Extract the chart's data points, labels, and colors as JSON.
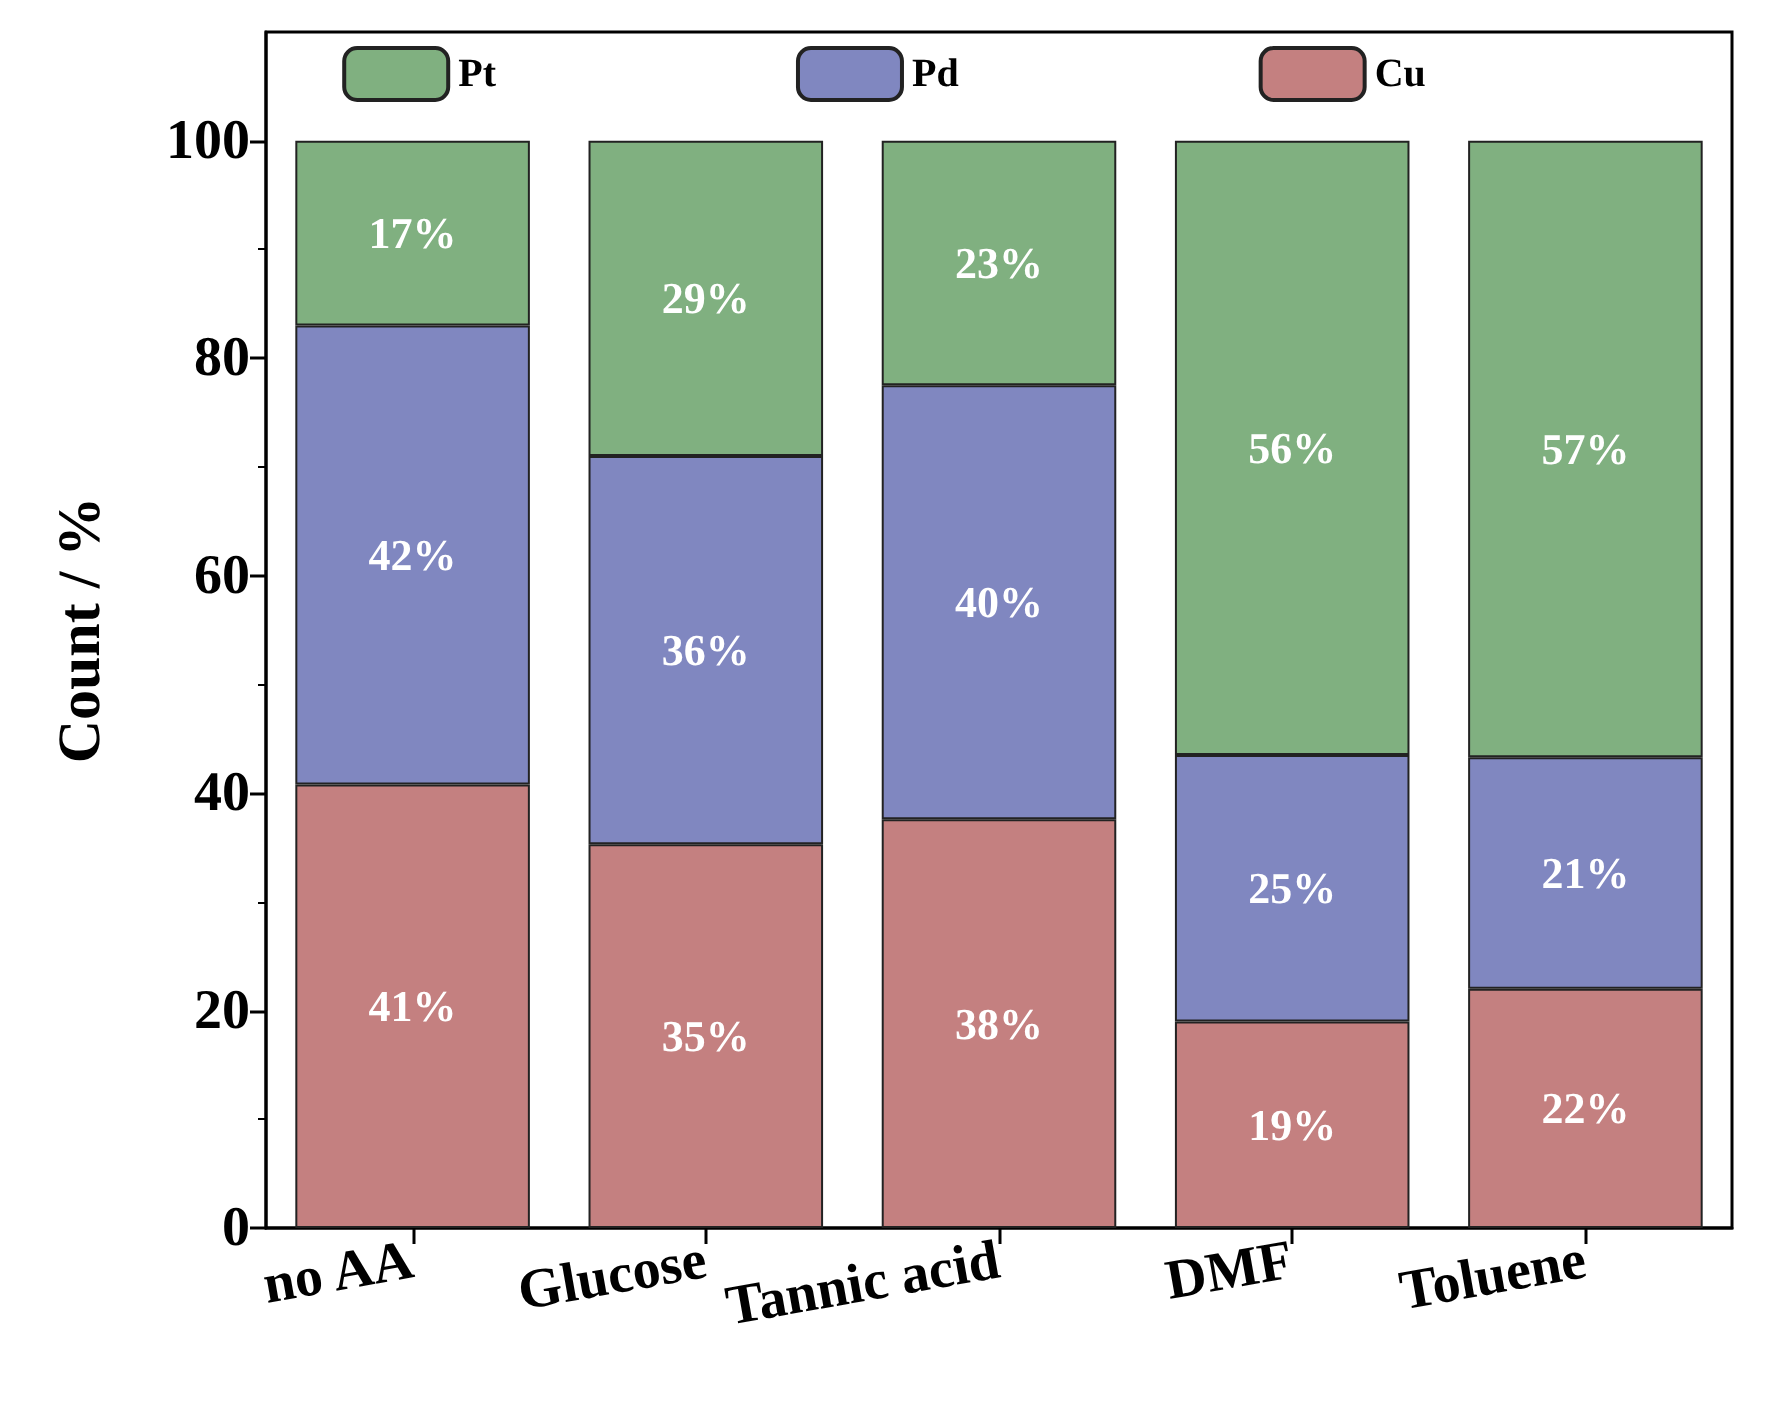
{
  "chart_data": {
    "type": "bar",
    "stacked": true,
    "ylabel": "Count / %",
    "categories": [
      "no AA",
      "Glucose",
      "Tannic acid",
      "DMF",
      "Toluene"
    ],
    "series": [
      {
        "name": "Cu",
        "color": "#c48080",
        "values": [
          40.8,
          35.3,
          37.6,
          19,
          22
        ],
        "value_labels": [
          "41%",
          "35%",
          "38%",
          "19%",
          "22%"
        ]
      },
      {
        "name": "Pd",
        "color": "#8087c0",
        "values": [
          42.2,
          35.7,
          39.9,
          24.5,
          21.3
        ],
        "value_labels": [
          "42%",
          "36%",
          "40%",
          "25%",
          "21%"
        ]
      },
      {
        "name": "Pt",
        "color": "#80b080",
        "values": [
          17,
          29,
          22.5,
          56.5,
          56.7
        ],
        "value_labels": [
          "17%",
          "29%",
          "23%",
          "56%",
          "57%"
        ]
      }
    ],
    "ylim": [
      0,
      110
    ],
    "yticks": [
      0,
      20,
      40,
      60,
      80,
      100
    ],
    "grid": false,
    "legend": "top"
  }
}
